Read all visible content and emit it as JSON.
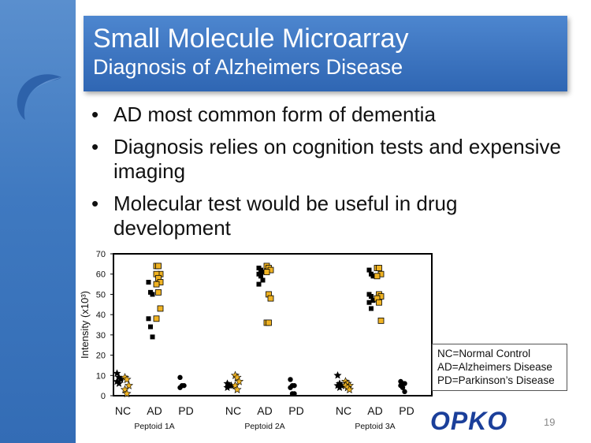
{
  "slide": {
    "title": "Small Molecule Microarray",
    "subtitle": "Diagnosis of Alzheimers Disease",
    "bullets": [
      "AD most common form of dementia",
      "Diagnosis relies on cognition tests and expensive imaging",
      "Molecular test would be useful in drug development"
    ],
    "legend_lines": [
      "NC=Normal Control",
      "AD=Alzheimers Disease",
      "PD=Parkinson’s Disease"
    ],
    "logo_text": "OPKO",
    "page_number": "19",
    "colors": {
      "sidebar": "#3f79c0",
      "title_box": "#3a74c1",
      "logo": "#1b3f9a",
      "marker_yellow": "#f0b323",
      "marker_black": "#000000"
    }
  },
  "chart_data": {
    "type": "scatter",
    "ylabel": "Intensity (x10³)",
    "ylim": [
      0,
      70
    ],
    "yticks": [
      0,
      10,
      20,
      30,
      40,
      50,
      60,
      70
    ],
    "groups": [
      {
        "name": "Peptoid 1A",
        "categories": [
          {
            "label": "NC",
            "points": [
              {
                "marker": "star-black",
                "values": [
                  11,
                  9,
                  8,
                  7,
                  6
                ]
              },
              {
                "marker": "star-yellow",
                "values": [
                  9,
                  8,
                  5,
                  3,
                  1
                ]
              }
            ]
          },
          {
            "label": "AD",
            "points": [
              {
                "marker": "square-black",
                "values": [
                  56,
                  51,
                  50,
                  38,
                  34,
                  29
                ]
              },
              {
                "marker": "square-yellow",
                "values": [
                  64,
                  64,
                  60,
                  60,
                  58,
                  56,
                  55,
                  51,
                  43,
                  38
                ]
              }
            ]
          },
          {
            "label": "PD",
            "points": [
              {
                "marker": "circle-black",
                "values": [
                  9,
                  5,
                  5,
                  4
                ]
              }
            ]
          }
        ]
      },
      {
        "name": "Peptoid 2A",
        "categories": [
          {
            "label": "NC",
            "points": [
              {
                "marker": "star-black",
                "values": [
                  6,
                  5,
                  5,
                  4
                ]
              },
              {
                "marker": "star-yellow",
                "values": [
                  10,
                  9,
                  7,
                  5,
                  3
                ]
              }
            ]
          },
          {
            "label": "AD",
            "points": [
              {
                "marker": "square-black",
                "values": [
                  63,
                  62,
                  61,
                  60,
                  59,
                  57,
                  55
                ]
              },
              {
                "marker": "square-yellow",
                "values": [
                  64,
                  63,
                  62,
                  61,
                  50,
                  48,
                  36,
                  36
                ]
              }
            ]
          },
          {
            "label": "PD",
            "points": [
              {
                "marker": "circle-black",
                "values": [
                  8,
                  5,
                  5,
                  4,
                  1,
                  1
                ]
              }
            ]
          }
        ]
      },
      {
        "name": "Peptoid 3A",
        "categories": [
          {
            "label": "NC",
            "points": [
              {
                "marker": "star-black",
                "values": [
                  10,
                  6,
                  5,
                  5,
                  4
                ]
              },
              {
                "marker": "star-yellow",
                "values": [
                  7,
                  6,
                  5,
                  5,
                  4,
                  3
                ]
              }
            ]
          },
          {
            "label": "AD",
            "points": [
              {
                "marker": "square-black",
                "values": [
                  62,
                  60,
                  59,
                  50,
                  49,
                  47,
                  46,
                  43
                ]
              },
              {
                "marker": "square-yellow",
                "values": [
                  63,
                  63,
                  60,
                  59,
                  50,
                  49,
                  48,
                  46,
                  37
                ]
              }
            ]
          },
          {
            "label": "PD",
            "points": [
              {
                "marker": "circle-black",
                "values": [
                  7,
                  6,
                  6,
                  5,
                  4,
                  2
                ]
              }
            ]
          }
        ]
      }
    ]
  }
}
